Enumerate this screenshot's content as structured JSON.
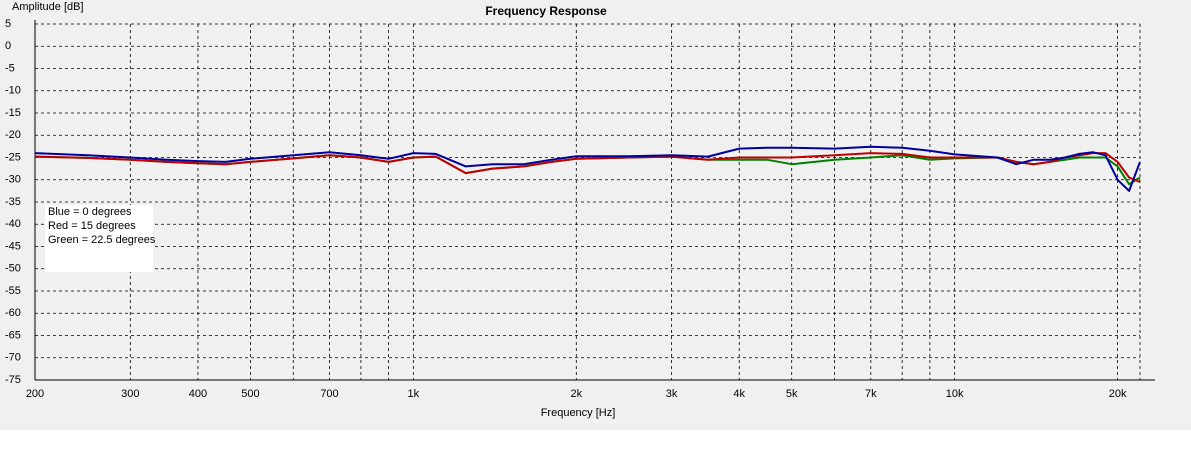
{
  "chart_data": {
    "type": "line",
    "title": "Frequency Response",
    "x_label": "Frequency [Hz]",
    "y_label": "Amplitude [dB]",
    "x": [
      200,
      250,
      300,
      350,
      400,
      450,
      500,
      600,
      700,
      800,
      900,
      1000,
      1100,
      1250,
      1400,
      1600,
      1800,
      2000,
      2500,
      3000,
      3500,
      4000,
      4500,
      5000,
      6000,
      7000,
      8000,
      9000,
      10000,
      12000,
      13000,
      14000,
      15000,
      16000,
      17000,
      18000,
      19000,
      20000,
      21000,
      22000
    ],
    "series": [
      {
        "name": "Blue = 0 degrees",
        "color": "#0000a0",
        "values": [
          -24,
          -24.5,
          -25,
          -25.5,
          -25.8,
          -26,
          -25.3,
          -24.5,
          -23.8,
          -24.5,
          -25.3,
          -24,
          -24.2,
          -27,
          -26.5,
          -26.5,
          -25.5,
          -24.7,
          -24.7,
          -24.5,
          -24.8,
          -23,
          -22.8,
          -22.8,
          -23,
          -22.6,
          -22.8,
          -23.5,
          -24.3,
          -25,
          -26.5,
          -25.5,
          -25.5,
          -25,
          -24.2,
          -23.8,
          -24.5,
          -30,
          -32.5,
          -26
        ]
      },
      {
        "name": "Red = 15 degrees",
        "color": "#c00000",
        "values": [
          -24.8,
          -25.1,
          -25.5,
          -26,
          -26.3,
          -26.5,
          -26,
          -25.2,
          -24.5,
          -25,
          -26,
          -25,
          -24.8,
          -28.5,
          -27.5,
          -27,
          -26,
          -25.3,
          -25,
          -24.8,
          -25.5,
          -25,
          -25,
          -25,
          -24.5,
          -24,
          -24.2,
          -25,
          -25,
          -25,
          -26,
          -26.5,
          -26,
          -25,
          -24.5,
          -24,
          -24,
          -26,
          -29.5,
          -30.5
        ]
      },
      {
        "name": "Green = 22.5 degrees",
        "color": "#008000",
        "values": [
          -24.8,
          -25.1,
          -25.5,
          -26,
          -26.3,
          -26.5,
          -26,
          -25.2,
          -24.5,
          -25,
          -26,
          -25,
          -24.8,
          -28.5,
          -27.5,
          -27,
          -26,
          -25.3,
          -25,
          -24.8,
          -25.5,
          -25.5,
          -25.5,
          -26.5,
          -25.5,
          -25,
          -24.5,
          -25.5,
          -25.2,
          -25,
          -26,
          -26.5,
          -26,
          -25.5,
          -25,
          -25,
          -25,
          -27,
          -31,
          -29.5
        ]
      }
    ],
    "xlog": true,
    "xlim": [
      200,
      22000
    ],
    "xticks": [
      200,
      300,
      400,
      500,
      700,
      {
        "value": 1000,
        "label": "1k"
      },
      {
        "value": 2000,
        "label": "2k"
      },
      {
        "value": 3000,
        "label": "3k"
      },
      {
        "value": 4000,
        "label": "4k"
      },
      {
        "value": 5000,
        "label": "5k"
      },
      {
        "value": 7000,
        "label": "7k"
      },
      {
        "value": 10000,
        "label": "10k"
      },
      {
        "value": 20000,
        "label": "20k"
      }
    ],
    "xminorticks": [
      600,
      800,
      900,
      6000,
      8000,
      9000
    ],
    "ylim": [
      -75,
      5
    ],
    "yticks": [
      -75,
      -70,
      -65,
      -60,
      -55,
      -50,
      -45,
      -40,
      -35,
      -30,
      -25,
      -20,
      -15,
      -10,
      -5,
      0,
      5
    ],
    "grid": true
  }
}
